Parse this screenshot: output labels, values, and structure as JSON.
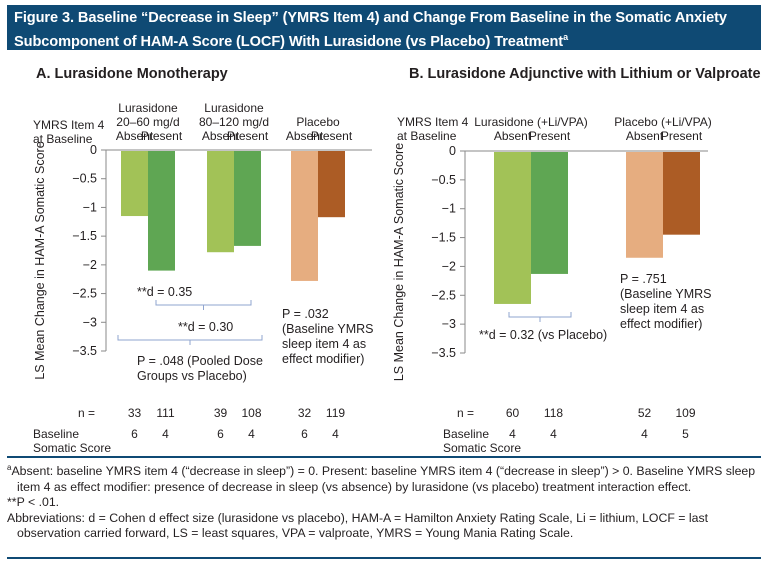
{
  "title": {
    "text": "Figure 3. Baseline “Decrease in Sleep” (YMRS Item 4) and Change From Baseline in the Somatic Anxiety Subcomponent of HAM-A Score (LOCF) With Lurasidone (vs Placebo) Treatment",
    "superscript": "a"
  },
  "colors": {
    "header_bg": "#0f4a74",
    "lurasidone_absent": "#a2c257",
    "lurasidone_present": "#5fa653",
    "placebo_absent": "#e6ad80",
    "placebo_present": "#ac5c25",
    "bracket": "#8fa4cf"
  },
  "chart_data": [
    {
      "type": "bar",
      "title": "A. Lurasidone Monotherapy",
      "ylabel": "LS Mean Change in HAM-A Somatic Score",
      "row_header": "YMRS Item 4 at Baseline",
      "ylim": [
        -3.5,
        0
      ],
      "yticks": [
        "0",
        "−0.5",
        "−1",
        "−1.5",
        "−2",
        "−2.5",
        "−3",
        "−3.5"
      ],
      "groups": [
        {
          "name_line1": "Lurasidone",
          "name_line2": "20–60 mg/d",
          "kind": "lurasidone",
          "bars": [
            {
              "label": "Absent",
              "value": -1.15,
              "n": "33",
              "baseline": "6"
            },
            {
              "label": "Present",
              "value": -2.1,
              "n": "111",
              "baseline": "4"
            }
          ]
        },
        {
          "name_line1": "Lurasidone",
          "name_line2": "80–120 mg/d",
          "kind": "lurasidone",
          "bars": [
            {
              "label": "Absent",
              "value": -1.78,
              "n": "39",
              "baseline": "6"
            },
            {
              "label": "Present",
              "value": -1.67,
              "n": "108",
              "baseline": "4"
            }
          ]
        },
        {
          "name_line1": "",
          "name_line2": "Placebo",
          "kind": "placebo",
          "bars": [
            {
              "label": "Absent",
              "value": -2.28,
              "n": "32",
              "baseline": "6"
            },
            {
              "label": "Present",
              "value": -1.17,
              "n": "119",
              "baseline": "4"
            }
          ]
        }
      ],
      "annotations": {
        "d1": "**d = 0.35",
        "d2": "**d = 0.30",
        "pooled_line1": "P = .048 (Pooled Dose",
        "pooled_line2": "Groups vs Placebo)",
        "interaction_p": "P = .032",
        "interaction_line1": "(Baseline YMRS",
        "interaction_line2": "sleep item 4 as",
        "interaction_line3": "effect modifier)"
      },
      "n_label": "n =",
      "baseline_label_line1": "Baseline",
      "baseline_label_line2": "Somatic Score"
    },
    {
      "type": "bar",
      "title": "B. Lurasidone Adjunctive with Lithium or Valproate",
      "ylabel": "LS Mean Change in HAM-A Somatic Score",
      "row_header": "YMRS Item 4 at Baseline",
      "ylim": [
        -3.5,
        0
      ],
      "yticks": [
        "0",
        "−0.5",
        "−1",
        "−1.5",
        "−2",
        "−2.5",
        "−3",
        "−3.5"
      ],
      "groups": [
        {
          "name_line1": "",
          "name_line2": "Lurasidone (+Li/VPA)",
          "kind": "lurasidone",
          "bars": [
            {
              "label": "Absent",
              "value": -2.65,
              "n": "60",
              "baseline": "4"
            },
            {
              "label": "Present",
              "value": -2.13,
              "n": "118",
              "baseline": "4"
            }
          ]
        },
        {
          "name_line1": "",
          "name_line2": "Placebo (+Li/VPA)",
          "kind": "placebo",
          "bars": [
            {
              "label": "Absent",
              "value": -1.85,
              "n": "52",
              "baseline": "4"
            },
            {
              "label": "Present",
              "value": -1.45,
              "n": "109",
              "baseline": "5"
            }
          ]
        }
      ],
      "annotations": {
        "d1": "**d = 0.32 (vs Placebo)",
        "interaction_p": "P = .751",
        "interaction_line1": "(Baseline YMRS",
        "interaction_line2": "sleep item 4 as",
        "interaction_line3": "effect modifier)"
      },
      "n_label": "n =",
      "baseline_label_line1": "Baseline",
      "baseline_label_line2": "Somatic Score"
    }
  ],
  "footnotes": {
    "a": "Absent: baseline YMRS item 4 (“decrease in sleep”) = 0. Present: baseline YMRS item 4 (“decrease in sleep”) > 0. Baseline YMRS sleep item 4 as effect modifier: presence of decrease in sleep (vs absence) by lurasidone (vs placebo) treatment interaction effect.",
    "a_marker": "a",
    "significance": "**P < .01.",
    "abbreviations": "Abbreviations: d = Cohen d effect size (lurasidone vs placebo), HAM-A = Hamilton Anxiety Rating Scale, Li = lithium, LOCF = last observation carried forward, LS = least squares, VPA = valproate, YMRS = Young Mania Rating Scale."
  }
}
